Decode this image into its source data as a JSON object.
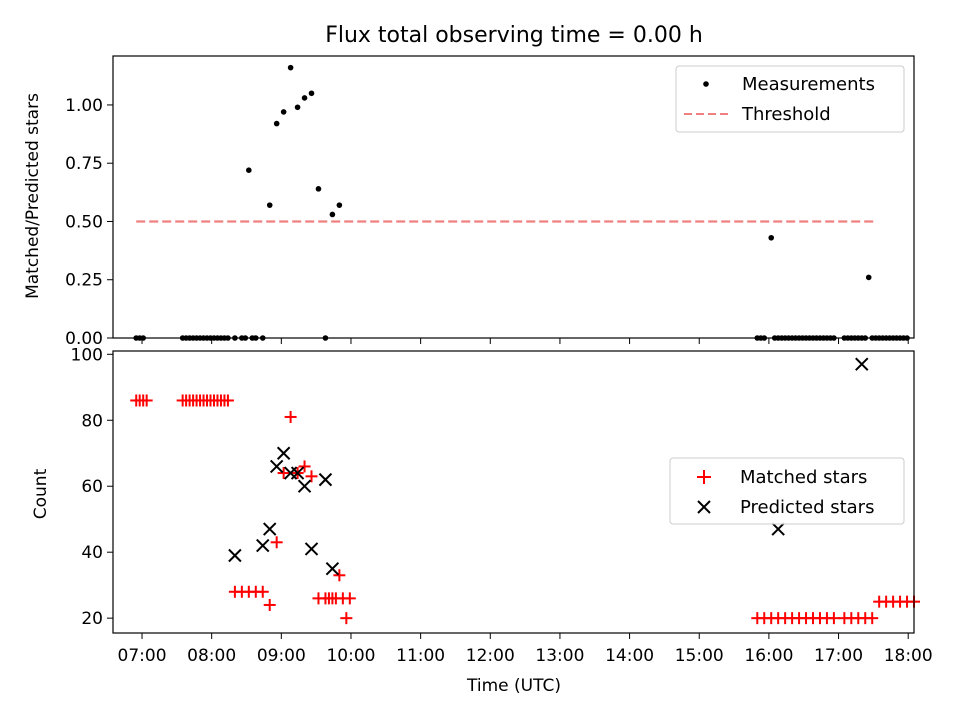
{
  "chart_data": [
    {
      "type": "scatter",
      "title": "Flux total observing time = 0.00 h",
      "xlabel": "",
      "ylabel": "Matched/Predicted stars",
      "ylim": [
        0,
        1.21
      ],
      "xlim": [
        "06:35",
        "18:05"
      ],
      "y_ticks": [
        "0.00",
        "0.25",
        "0.50",
        "0.75",
        "1.00"
      ],
      "y_tick_values": [
        0,
        0.25,
        0.5,
        0.75,
        1.0
      ],
      "legend_position": "top-right",
      "legend": [
        "Measurements",
        "Threshold"
      ],
      "colors": {
        "measurements": "#000000",
        "threshold": "#f08080"
      },
      "threshold": {
        "name": "Threshold",
        "value": 0.5,
        "x_start": "06:55",
        "x_end": "17:30"
      },
      "series": [
        {
          "name": "Measurements",
          "x": [
            "06:55",
            "06:58",
            "07:01",
            "07:35",
            "07:38",
            "07:41",
            "07:44",
            "07:47",
            "07:50",
            "07:53",
            "07:56",
            "07:59",
            "08:02",
            "08:05",
            "08:08",
            "08:11",
            "08:14",
            "08:20",
            "08:26",
            "08:29",
            "08:32",
            "08:35",
            "08:38",
            "08:44",
            "08:50",
            "08:56",
            "09:02",
            "09:08",
            "09:14",
            "09:20",
            "09:26",
            "09:32",
            "09:38",
            "09:44",
            "09:50",
            "15:50",
            "15:53",
            "15:56",
            "16:02",
            "16:05",
            "16:08",
            "16:11",
            "16:14",
            "16:17",
            "16:20",
            "16:23",
            "16:26",
            "16:29",
            "16:32",
            "16:35",
            "16:38",
            "16:41",
            "16:44",
            "16:47",
            "16:50",
            "16:53",
            "16:56",
            "17:05",
            "17:08",
            "17:11",
            "17:14",
            "17:17",
            "17:20",
            "17:23",
            "17:26",
            "17:29",
            "17:32",
            "17:35",
            "17:38",
            "17:41",
            "17:44",
            "17:47",
            "17:50",
            "17:53",
            "17:56",
            "17:59"
          ],
          "y": [
            0,
            0,
            0,
            0,
            0,
            0,
            0,
            0,
            0,
            0,
            0,
            0,
            0,
            0,
            0,
            0,
            0,
            0,
            0,
            0,
            0.72,
            0,
            0,
            0,
            0.57,
            0.92,
            0.97,
            1.16,
            0.99,
            1.03,
            1.05,
            0.64,
            0,
            0.53,
            0.57,
            0,
            0,
            0,
            0.43,
            0,
            0,
            0,
            0,
            0,
            0,
            0,
            0,
            0,
            0,
            0,
            0,
            0,
            0,
            0,
            0,
            0,
            0,
            0,
            0,
            0,
            0,
            0,
            0,
            0,
            0.26,
            0,
            0,
            0,
            0,
            0,
            0,
            0,
            0,
            0,
            0,
            0
          ]
        }
      ]
    },
    {
      "type": "scatter",
      "title": "",
      "xlabel": "Time (UTC)",
      "ylabel": "Count",
      "ylim": [
        15.5,
        101
      ],
      "xlim": [
        "06:35",
        "18:05"
      ],
      "x_ticks": [
        "07:00",
        "08:00",
        "09:00",
        "10:00",
        "11:00",
        "12:00",
        "13:00",
        "14:00",
        "15:00",
        "16:00",
        "17:00",
        "18:00"
      ],
      "y_ticks": [
        "20",
        "40",
        "60",
        "80",
        "100"
      ],
      "y_tick_values": [
        20,
        40,
        60,
        80,
        100
      ],
      "legend_position": "center-right",
      "legend": [
        "Matched stars",
        "Predicted stars"
      ],
      "colors": {
        "matched": "#ff0000",
        "predicted": "#000000"
      },
      "series": [
        {
          "name": "Matched stars",
          "x": [
            "06:55",
            "06:58",
            "07:01",
            "07:04",
            "07:35",
            "07:38",
            "07:41",
            "07:44",
            "07:47",
            "07:50",
            "07:53",
            "07:56",
            "07:59",
            "08:02",
            "08:05",
            "08:08",
            "08:11",
            "08:14",
            "08:20",
            "08:26",
            "08:32",
            "08:38",
            "08:44",
            "08:50",
            "08:56",
            "09:02",
            "09:08",
            "09:14",
            "09:20",
            "09:26",
            "09:32",
            "09:38",
            "09:44",
            "09:50",
            "09:56",
            "09:59",
            "09:53",
            "09:47",
            "09:41",
            "15:50",
            "15:56",
            "16:02",
            "16:08",
            "16:14",
            "16:20",
            "16:26",
            "16:32",
            "16:38",
            "16:44",
            "16:50",
            "16:56",
            "17:05",
            "17:11",
            "17:17",
            "17:23",
            "17:29",
            "17:35",
            "17:41",
            "17:47",
            "17:53",
            "17:59",
            "18:05"
          ],
          "y": [
            86,
            86,
            86,
            86,
            86,
            86,
            86,
            86,
            86,
            86,
            86,
            86,
            86,
            86,
            86,
            86,
            86,
            86,
            28,
            28,
            28,
            28,
            28,
            24,
            43,
            64,
            81,
            64,
            66,
            63,
            26,
            26,
            26,
            33,
            20,
            26,
            26,
            26,
            26,
            20,
            20,
            20,
            20,
            20,
            20,
            20,
            20,
            20,
            20,
            20,
            20,
            20,
            20,
            20,
            20,
            20,
            25,
            25,
            25,
            25,
            25,
            25
          ]
        },
        {
          "name": "Predicted stars",
          "x": [
            "08:20",
            "08:44",
            "08:50",
            "08:56",
            "09:02",
            "09:08",
            "09:14",
            "09:20",
            "09:26",
            "09:38",
            "09:44",
            "16:08",
            "17:20"
          ],
          "y": [
            39,
            42,
            47,
            66,
            70,
            64,
            64,
            60,
            41,
            62,
            35,
            47,
            97
          ]
        }
      ]
    }
  ]
}
